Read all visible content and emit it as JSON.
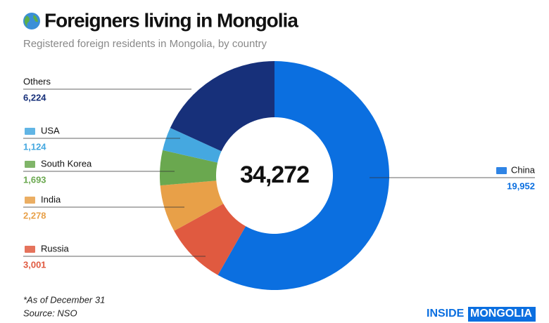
{
  "chart_data": {
    "type": "donut",
    "title": "Foreigners living in Mongolia",
    "subtitle": "Registered foreign residents in Mongolia, by country",
    "center_label": "34,272",
    "categories": [
      "China",
      "Russia",
      "India",
      "South Korea",
      "USA",
      "Others"
    ],
    "values": [
      19952,
      3001,
      2278,
      1693,
      1124,
      6224
    ],
    "value_labels": [
      "19,952",
      "3,001",
      "2,278",
      "1,693",
      "1,124",
      "6,224"
    ],
    "colors": [
      "#0b6fe0",
      "#e05a40",
      "#e8a048",
      "#6aa84f",
      "#45a8e0",
      "#17307a"
    ],
    "note": "*As of December 31",
    "source": "Source: NSO",
    "logo_left": "INSIDE",
    "logo_right": "MONGOLIA"
  }
}
